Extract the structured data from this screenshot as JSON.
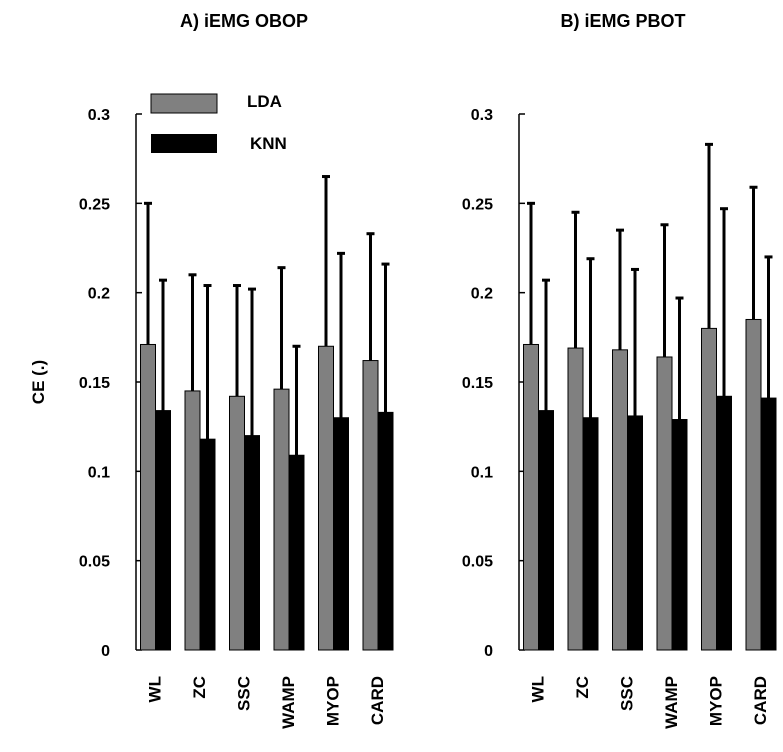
{
  "figure": {
    "ylabel": "CE (.)",
    "legend": [
      {
        "name": "LDA",
        "color": "#808080"
      },
      {
        "name": "KNN",
        "color": "#000000"
      }
    ]
  },
  "chart_data": [
    {
      "type": "bar",
      "title": "A) iEMG OBOP",
      "categories": [
        "WL",
        "ZC",
        "SSC",
        "WAMP",
        "MYOP",
        "CARD"
      ],
      "ylabel": "CE (.)",
      "ylim": [
        0,
        0.3
      ],
      "yticks": [
        "0",
        "0.05",
        "0.1",
        "0.15",
        "0.2",
        "0.25",
        "0.3"
      ],
      "series": [
        {
          "name": "LDA",
          "color": "#808080",
          "values": [
            0.171,
            0.145,
            0.142,
            0.146,
            0.17,
            0.162
          ],
          "errors": [
            0.079,
            0.065,
            0.062,
            0.068,
            0.095,
            0.071
          ]
        },
        {
          "name": "KNN",
          "color": "#000000",
          "values": [
            0.134,
            0.118,
            0.12,
            0.109,
            0.13,
            0.133
          ],
          "errors": [
            0.073,
            0.086,
            0.082,
            0.061,
            0.092,
            0.083
          ]
        }
      ],
      "legend_position": "top-left",
      "grid": false
    },
    {
      "type": "bar",
      "title": "B)  iEMG PBOT",
      "categories": [
        "WL",
        "ZC",
        "SSC",
        "WAMP",
        "MYOP",
        "CARD"
      ],
      "ylabel": "",
      "ylim": [
        0,
        0.3
      ],
      "yticks": [
        "0",
        "0.05",
        "0.1",
        "0.15",
        "0.2",
        "0.25",
        "0.3"
      ],
      "series": [
        {
          "name": "LDA",
          "color": "#808080",
          "values": [
            0.171,
            0.169,
            0.168,
            0.164,
            0.18,
            0.185
          ],
          "errors": [
            0.079,
            0.076,
            0.067,
            0.074,
            0.103,
            0.074
          ]
        },
        {
          "name": "KNN",
          "color": "#000000",
          "values": [
            0.134,
            0.13,
            0.131,
            0.129,
            0.142,
            0.141
          ],
          "errors": [
            0.073,
            0.089,
            0.082,
            0.068,
            0.105,
            0.079
          ]
        }
      ],
      "grid": false
    }
  ]
}
